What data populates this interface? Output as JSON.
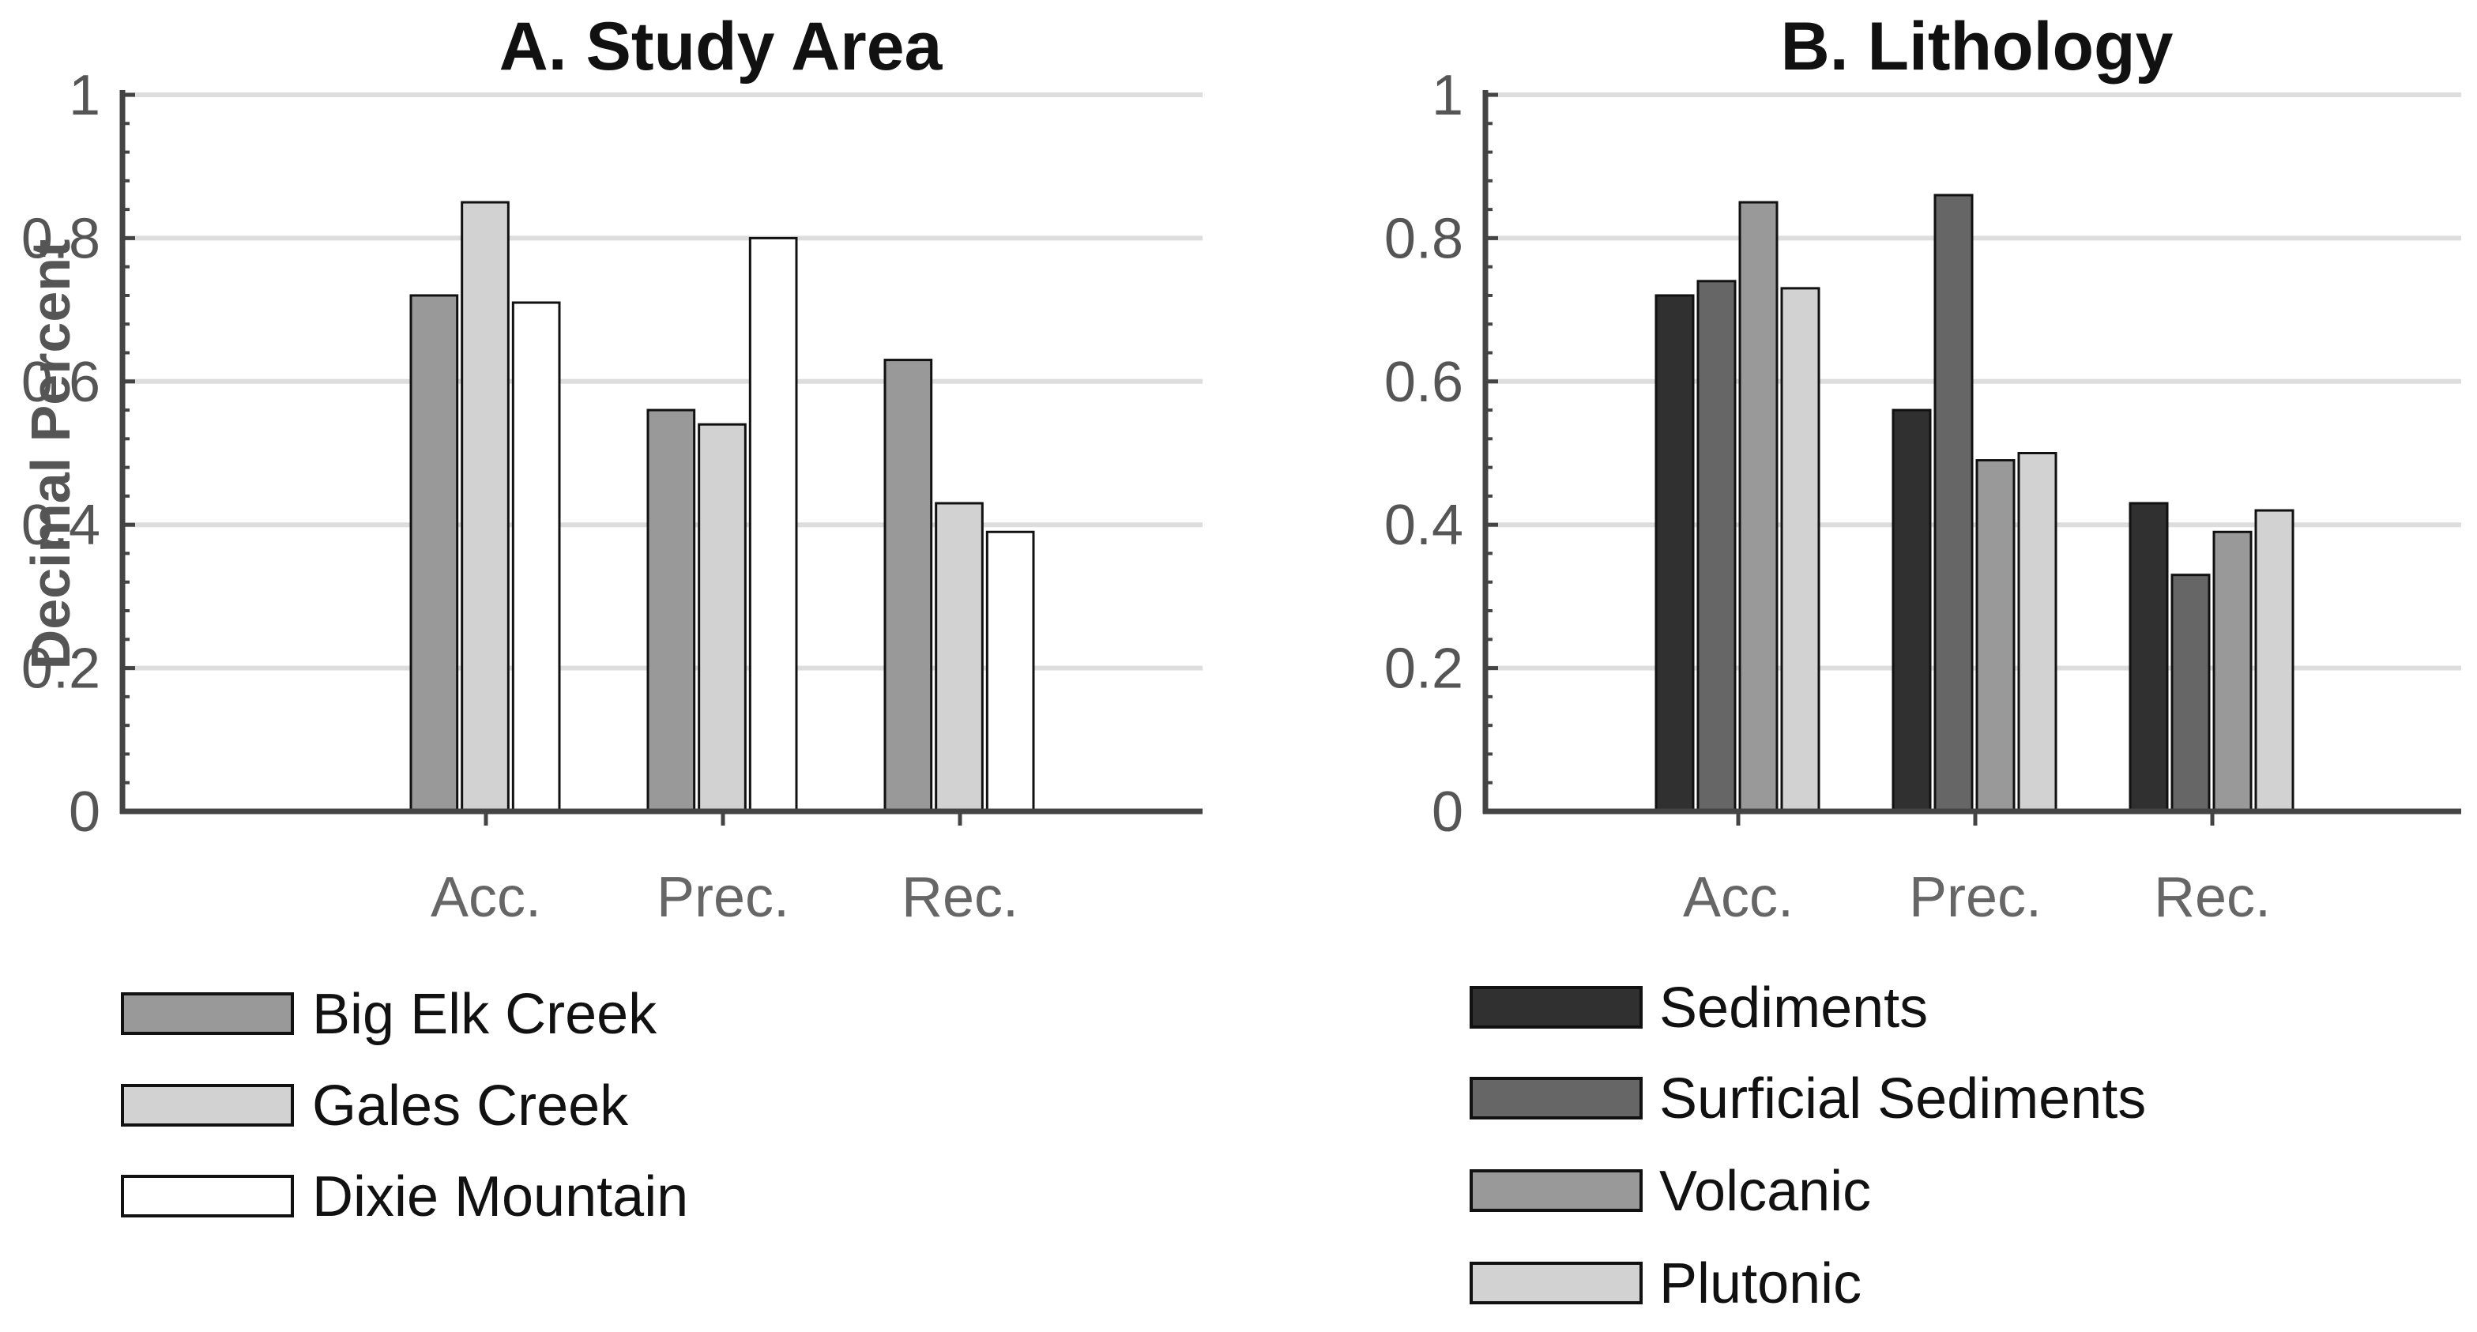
{
  "chart_data": [
    {
      "type": "bar",
      "id": "a",
      "title": "A. Study Area",
      "ylabel": "Decimal Percent",
      "xlabel": "",
      "ylim": [
        0,
        1
      ],
      "yticks": [
        0,
        0.2,
        0.4,
        0.6,
        0.8,
        1
      ],
      "ytick_labels": [
        "0",
        "0.2",
        "0.4",
        "0.6",
        "0.8",
        "1"
      ],
      "grid": true,
      "legend_position": "below",
      "categories": [
        "Acc.",
        "Prec.",
        "Rec."
      ],
      "series": [
        {
          "name": "Big Elk Creek",
          "color": "#999999",
          "values": [
            0.72,
            0.56,
            0.63
          ]
        },
        {
          "name": "Gales Creek",
          "color": "#d2d2d2",
          "values": [
            0.85,
            0.54,
            0.43
          ]
        },
        {
          "name": "Dixie Mountain",
          "color": "#ffffff",
          "values": [
            0.71,
            0.8,
            0.39
          ]
        }
      ]
    },
    {
      "type": "bar",
      "id": "b",
      "title": "B. Lithology",
      "ylabel": "",
      "xlabel": "",
      "ylim": [
        0,
        1
      ],
      "yticks": [
        0,
        0.2,
        0.4,
        0.6,
        0.8,
        1
      ],
      "ytick_labels": [
        "0",
        "0.2",
        "0.4",
        "0.6",
        "0.8",
        "1"
      ],
      "grid": true,
      "legend_position": "below",
      "categories": [
        "Acc.",
        "Prec.",
        "Rec."
      ],
      "series": [
        {
          "name": "Sediments",
          "color": "#303030",
          "values": [
            0.72,
            0.56,
            0.43
          ]
        },
        {
          "name": "Surficial Sediments",
          "color": "#666666",
          "values": [
            0.74,
            0.86,
            0.33
          ]
        },
        {
          "name": "Volcanic",
          "color": "#999999",
          "values": [
            0.85,
            0.49,
            0.39
          ]
        },
        {
          "name": "Plutonic",
          "color": "#d2d2d2",
          "values": [
            0.73,
            0.5,
            0.42
          ]
        }
      ]
    }
  ]
}
